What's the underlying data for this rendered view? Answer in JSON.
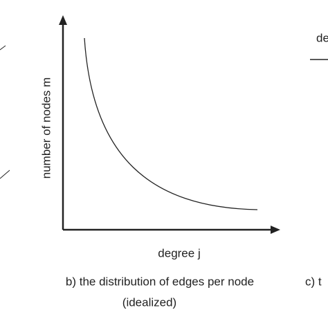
{
  "figure": {
    "y_axis_label": "number of nodes m",
    "x_axis_label": "degree j",
    "caption_line1": "b) the distribution of edges per node",
    "caption_line2": "(idealized)"
  },
  "right_fragment": {
    "label": "de",
    "caption": "c) t"
  }
}
